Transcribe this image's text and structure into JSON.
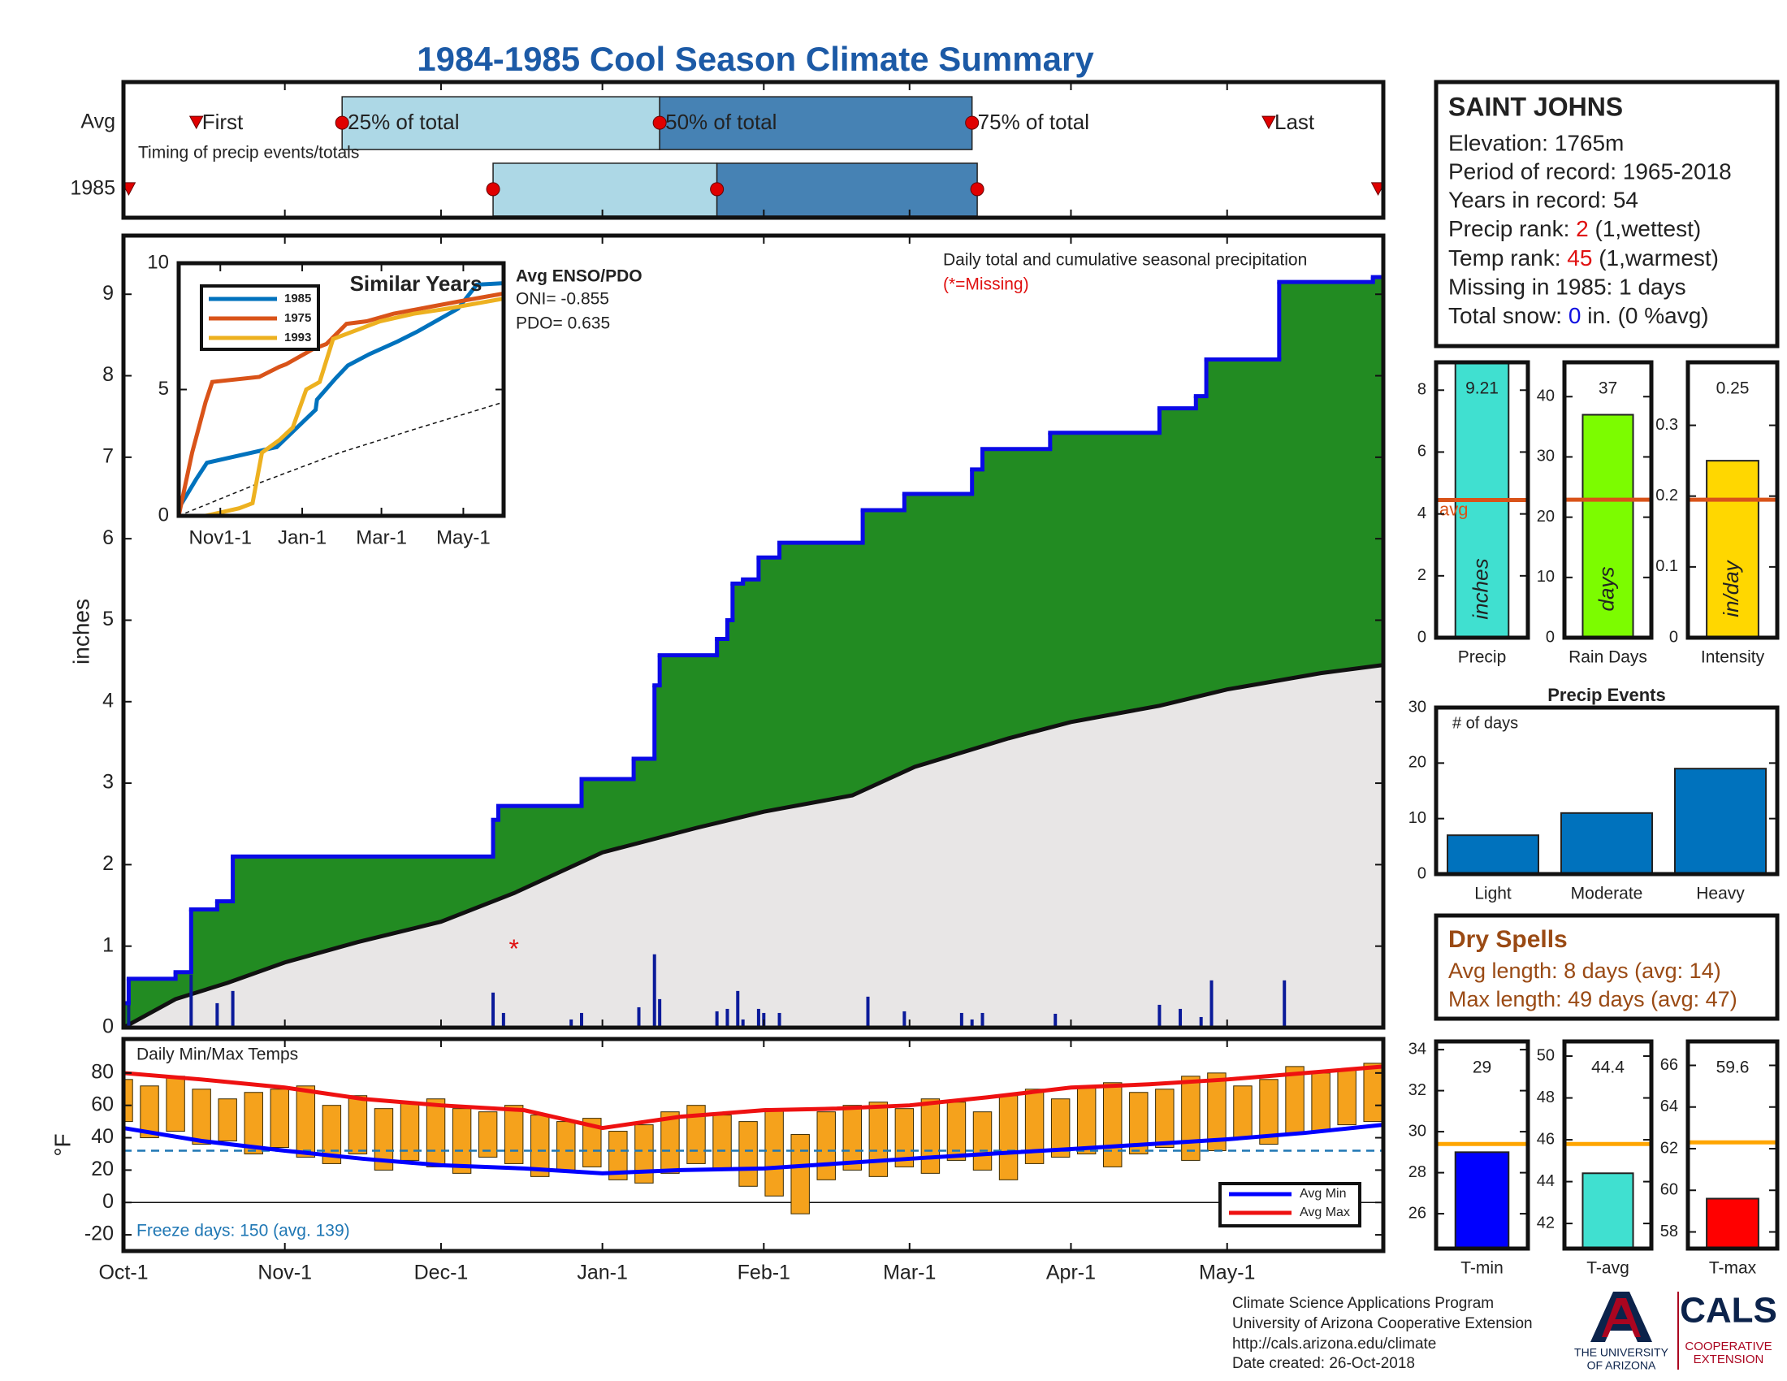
{
  "title": "1984-1985 Cool Season Climate Summary",
  "chart_data": [
    {
      "type": "timeline",
      "annotation": "Timing of precip events/totals",
      "categories": [
        "Avg",
        "1985"
      ],
      "labels": [
        "First",
        "25% of total",
        "50% of total",
        "75% of total",
        "Last"
      ],
      "rows": [
        [
          14,
          42,
          103,
          163,
          220
        ],
        [
          1,
          71,
          114,
          164,
          241
        ]
      ],
      "xlim": [
        0,
        242
      ],
      "xticks": [
        0,
        31,
        61,
        92,
        123,
        151,
        182,
        212
      ],
      "colors": {
        "early": "#add8e6",
        "late": "#4682b4",
        "marker": "#e00000"
      }
    },
    {
      "type": "cumulative",
      "annotation": "Daily total and cumulative seasonal precipitation",
      "missing_note": "(*=Missing)",
      "y_label": "inches",
      "xlim": [
        0,
        242
      ],
      "ylim": [
        0,
        9.72
      ],
      "xticks": [
        0,
        31,
        61,
        92,
        123,
        151,
        182,
        212
      ],
      "yticks": [
        0,
        1,
        2,
        3,
        4,
        5,
        6,
        7,
        8,
        9
      ],
      "fill_color": "#228b22",
      "base_color": "#e8e6e6",
      "series": [
        {
          "color": "#0a0ae6",
          "x": [
            0,
            1,
            10,
            13,
            18,
            21,
            71,
            72,
            88,
            98,
            102,
            103,
            114,
            116,
            117,
            119,
            122,
            126,
            142,
            150,
            163,
            165,
            178,
            199,
            206,
            208,
            222,
            240
          ],
          "values": [
            0.3,
            0.6,
            0.68,
            1.45,
            1.55,
            2.1,
            2.55,
            2.72,
            3.05,
            3.3,
            4.2,
            4.57,
            4.77,
            5.0,
            5.45,
            5.5,
            5.77,
            5.95,
            6.35,
            6.55,
            6.85,
            7.1,
            7.3,
            7.6,
            7.75,
            8.2,
            9.15,
            9.21
          ]
        },
        {
          "color": "#111111",
          "x": [
            0,
            10,
            20,
            31,
            45,
            61,
            75,
            92,
            110,
            123,
            140,
            152,
            170,
            182,
            199,
            212,
            230,
            242
          ],
          "values": [
            0,
            0.35,
            0.55,
            0.8,
            1.05,
            1.3,
            1.65,
            2.15,
            2.45,
            2.65,
            2.85,
            3.2,
            3.55,
            3.75,
            3.95,
            4.15,
            4.35,
            4.45
          ]
        }
      ],
      "daily": {
        "color": "#0a1a9a",
        "x": [
          1,
          13,
          18,
          21,
          71,
          73,
          86,
          88,
          99,
          102,
          103,
          114,
          116,
          118,
          119,
          122,
          123,
          126,
          143,
          150,
          161,
          163,
          165,
          179,
          199,
          203,
          207,
          209,
          223
        ],
        "values": [
          0.45,
          0.65,
          0.3,
          0.45,
          0.43,
          0.18,
          0.1,
          0.18,
          0.25,
          0.9,
          0.35,
          0.2,
          0.23,
          0.45,
          0.1,
          0.23,
          0.18,
          0.18,
          0.38,
          0.2,
          0.18,
          0.1,
          0.18,
          0.17,
          0.28,
          0.23,
          0.13,
          0.58,
          0.58
        ]
      },
      "missing": {
        "label": "*",
        "color": "#e01010",
        "x": [
          75
        ],
        "values": [
          1.0
        ]
      },
      "enso": {
        "title": "Avg ENSO/PDO",
        "lines": [
          "ONI= -0.855",
          "PDO= 0.635"
        ]
      }
    },
    {
      "type": "line",
      "title": "Similar Years",
      "legend": "upper left",
      "xlim": [
        0,
        242
      ],
      "ylim": [
        0,
        10
      ],
      "yticks": [
        0,
        5,
        10
      ],
      "xticks": [
        {
          "value": 31,
          "label": "Nov1-1"
        },
        {
          "value": 92,
          "label": "Jan-1"
        },
        {
          "value": 151,
          "label": "Mar-1"
        },
        {
          "value": 212,
          "label": "May-1"
        }
      ],
      "series": [
        {
          "name": "1985",
          "color": "#0072bd",
          "x": [
            0,
            13,
            21,
            71,
            73,
            102,
            103,
            117,
            126,
            142,
            163,
            178,
            208,
            222,
            242
          ],
          "values": [
            0.3,
            1.45,
            2.1,
            2.7,
            2.72,
            4.2,
            4.6,
            5.45,
            5.95,
            6.4,
            6.9,
            7.3,
            8.2,
            9.15,
            9.21
          ]
        },
        {
          "name": "1975",
          "color": "#d95319",
          "x": [
            0,
            10,
            20,
            25,
            60,
            75,
            80,
            100,
            110,
            125,
            140,
            160,
            190,
            210,
            242
          ],
          "values": [
            0,
            2.5,
            4.5,
            5.3,
            5.5,
            5.9,
            6.0,
            6.6,
            6.8,
            7.6,
            7.7,
            8.0,
            8.3,
            8.5,
            8.8
          ]
        },
        {
          "name": "1993",
          "color": "#edb120",
          "x": [
            0,
            20,
            45,
            55,
            62,
            75,
            85,
            95,
            105,
            115,
            130,
            150,
            175,
            200,
            242
          ],
          "values": [
            0,
            0,
            0.3,
            0.5,
            2.5,
            3.0,
            3.5,
            5.0,
            5.3,
            7.0,
            7.3,
            7.7,
            8.0,
            8.2,
            8.6
          ]
        }
      ],
      "average": {
        "color": "#111111",
        "x": [
          0,
          60,
          120,
          180,
          242
        ],
        "values": [
          0,
          1.3,
          2.5,
          3.5,
          4.5
        ]
      }
    },
    {
      "type": "minmax",
      "annotation": "Daily Min/Max Temps",
      "note": "Freeze days: 150 (avg. 139)",
      "y_label": "°F",
      "legend": "lower right",
      "xlim": [
        0,
        242
      ],
      "ylim": [
        -30,
        101
      ],
      "yticks": [
        -20,
        0,
        20,
        40,
        60,
        80
      ],
      "xticks": [
        {
          "value": 0,
          "label": "Oct-1"
        },
        {
          "value": 31,
          "label": "Nov-1"
        },
        {
          "value": 61,
          "label": "Dec-1"
        },
        {
          "value": 92,
          "label": "Jan-1"
        },
        {
          "value": 123,
          "label": "Feb-1"
        },
        {
          "value": 151,
          "label": "Mar-1"
        },
        {
          "value": 182,
          "label": "Apr-1"
        },
        {
          "value": 212,
          "label": "May-1"
        }
      ],
      "freeze_line": 32,
      "zero_line": 0,
      "bars": {
        "color": "#f5a21c",
        "x": [
          0,
          5,
          10,
          15,
          20,
          25,
          30,
          35,
          40,
          45,
          50,
          55,
          60,
          65,
          70,
          75,
          80,
          85,
          90,
          95,
          100,
          105,
          110,
          115,
          120,
          125,
          130,
          135,
          140,
          145,
          150,
          155,
          160,
          165,
          170,
          175,
          180,
          185,
          190,
          195,
          200,
          205,
          210,
          215,
          220,
          225,
          230,
          235,
          240
        ],
        "low": [
          50,
          40,
          44,
          36,
          38,
          30,
          34,
          28,
          24,
          30,
          20,
          26,
          22,
          18,
          28,
          24,
          16,
          20,
          22,
          14,
          12,
          18,
          24,
          20,
          10,
          4,
          -7,
          14,
          20,
          16,
          22,
          18,
          26,
          20,
          14,
          24,
          28,
          30,
          22,
          30,
          34,
          26,
          32,
          40,
          36,
          42,
          44,
          48,
          50
        ],
        "high": [
          76,
          72,
          78,
          70,
          64,
          68,
          70,
          72,
          60,
          66,
          58,
          62,
          64,
          58,
          56,
          60,
          54,
          50,
          52,
          44,
          48,
          56,
          60,
          54,
          50,
          58,
          42,
          56,
          60,
          62,
          58,
          64,
          62,
          56,
          66,
          70,
          64,
          72,
          74,
          68,
          70,
          78,
          80,
          72,
          76,
          84,
          80,
          82,
          86
        ]
      },
      "series": [
        {
          "name": "Avg Min",
          "color": "#0000ff",
          "x": [
            0,
            15,
            31,
            46,
            61,
            77,
            92,
            107,
            123,
            137,
            151,
            166,
            182,
            197,
            212,
            227,
            242
          ],
          "values": [
            46,
            38,
            32,
            27,
            23,
            21,
            18,
            20,
            21,
            24,
            27,
            30,
            33,
            36,
            39,
            43,
            48
          ]
        },
        {
          "name": "Avg Max",
          "color": "#ee1111",
          "x": [
            0,
            15,
            31,
            46,
            61,
            77,
            92,
            107,
            123,
            137,
            151,
            166,
            182,
            197,
            212,
            227,
            242
          ],
          "values": [
            80,
            76,
            71,
            64,
            60,
            57,
            46,
            53,
            57,
            58,
            60,
            65,
            71,
            73,
            76,
            80,
            84
          ]
        }
      ]
    },
    {
      "type": "bar",
      "categories": [
        "Precip"
      ],
      "values": [
        9.21
      ],
      "show_values": true,
      "bar_label": "inches",
      "reference": 4.45,
      "reference_label": "avg",
      "reference_color": "#d95319",
      "color": "#40e0d0",
      "ylim": [
        0,
        8.9
      ],
      "yticks": [
        0,
        2,
        4,
        6,
        8
      ]
    },
    {
      "type": "bar",
      "categories": [
        "Rain Days"
      ],
      "values": [
        37
      ],
      "show_values": true,
      "bar_label": "days",
      "reference": 22.9,
      "reference_color": "#d95319",
      "color": "#7cfc00",
      "ylim": [
        0,
        45.7
      ],
      "yticks": [
        0,
        10,
        20,
        30,
        40
      ]
    },
    {
      "type": "bar",
      "categories": [
        "Intensity"
      ],
      "values": [
        0.25
      ],
      "show_values": true,
      "bar_label": "in/day",
      "reference": 0.195,
      "reference_color": "#d95319",
      "color": "#ffd700",
      "ylim": [
        0,
        0.389
      ],
      "yticks": [
        0,
        0.1,
        0.2,
        0.3
      ]
    },
    {
      "type": "bar",
      "title": "Precip Events",
      "annotation": "# of days",
      "categories": [
        "Light",
        "Moderate",
        "Heavy"
      ],
      "values": [
        7,
        11,
        19
      ],
      "color": "#0072bd",
      "ylim": [
        0,
        30
      ],
      "yticks": [
        0,
        10,
        20,
        30
      ]
    },
    {
      "type": "bar",
      "categories": [
        "T-min"
      ],
      "values": [
        29
      ],
      "show_values": true,
      "reference": 29.4,
      "reference_color": "#ffa500",
      "color": "#0000ff",
      "ylim": [
        24.3,
        34.4
      ],
      "yticks": [
        26,
        28,
        30,
        32,
        34
      ]
    },
    {
      "type": "bar",
      "categories": [
        "T-avg"
      ],
      "values": [
        44.4
      ],
      "show_values": true,
      "reference": 45.8,
      "reference_color": "#ffa500",
      "color": "#40e0d0",
      "ylim": [
        40.8,
        50.7
      ],
      "yticks": [
        42,
        44,
        46,
        48,
        50
      ]
    },
    {
      "type": "bar",
      "categories": [
        "T-max"
      ],
      "values": [
        59.6
      ],
      "show_values": true,
      "reference": 62.3,
      "reference_color": "#ffa500",
      "color": "#ff0000",
      "ylim": [
        57.2,
        67.15
      ],
      "yticks": [
        58,
        60,
        62,
        64,
        66
      ]
    }
  ],
  "info": {
    "station": "SAINT JOHNS",
    "elevation": "Elevation: 1765m",
    "period": "Period of record: 1965-2018",
    "years": "Years in record: 54",
    "precip_rank": [
      "Precip rank: ",
      "2",
      " (1,wettest)"
    ],
    "temp_rank": [
      "Temp rank: ",
      "45",
      " (1,warmest)"
    ],
    "missing": "Missing in 1985: 1 days",
    "snow": [
      "Total snow: ",
      "0",
      " in. (0 %avg)"
    ]
  },
  "dry_spells": {
    "title": "Dry Spells",
    "avg": "Avg length: 8 days (avg: 14)",
    "max": "Max length: 49 days (avg: 47)"
  },
  "footer": {
    "lines": [
      "Climate Science Applications Program",
      "University of Arizona Cooperative Extension",
      "http://cals.arizona.edu/climate",
      " Date created: 26-Oct-2018"
    ]
  },
  "logo": {
    "university": [
      "THE UNIVERSITY",
      "OF ARIZONA"
    ],
    "cals": "CALS",
    "extension": [
      "COOPERATIVE",
      "EXTENSION"
    ]
  }
}
